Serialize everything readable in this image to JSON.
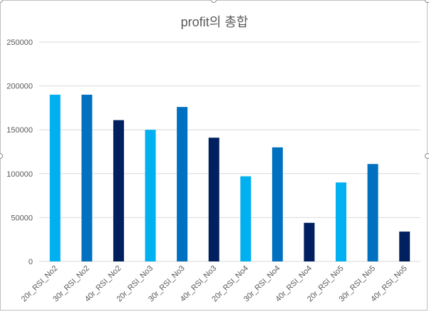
{
  "chart_data": {
    "type": "bar",
    "title": "profit의 총합",
    "categories": [
      "20r_RSI_No2",
      "30r_RSI_No2",
      "40r_RSI_No2",
      "20r_RSI_No3",
      "30r_RSI_No3",
      "40r_RSI_No3",
      "20r_RSI_No4",
      "30r_RSI_No4",
      "40r_RSI_No4",
      "20r_RSI_No5",
      "30r_RSI_No5",
      "40r_RSI_No5"
    ],
    "values": [
      190000,
      190000,
      161000,
      150000,
      176000,
      141000,
      97000,
      130000,
      44000,
      90000,
      111000,
      34000
    ],
    "bar_colors": [
      "#00B0F0",
      "#0070C0",
      "#002060",
      "#00B0F0",
      "#0070C0",
      "#002060",
      "#00B0F0",
      "#0070C0",
      "#002060",
      "#00B0F0",
      "#0070C0",
      "#002060"
    ],
    "ylim": [
      0,
      250000
    ],
    "y_ticks": [
      0,
      50000,
      100000,
      150000,
      200000,
      250000
    ],
    "y_tick_labels": [
      "0",
      "50000",
      "100000",
      "150000",
      "200000",
      "250000"
    ],
    "grid": true,
    "gridline_color": "#d9d9d9",
    "legend": "none",
    "xlabel": "",
    "ylabel": ""
  }
}
